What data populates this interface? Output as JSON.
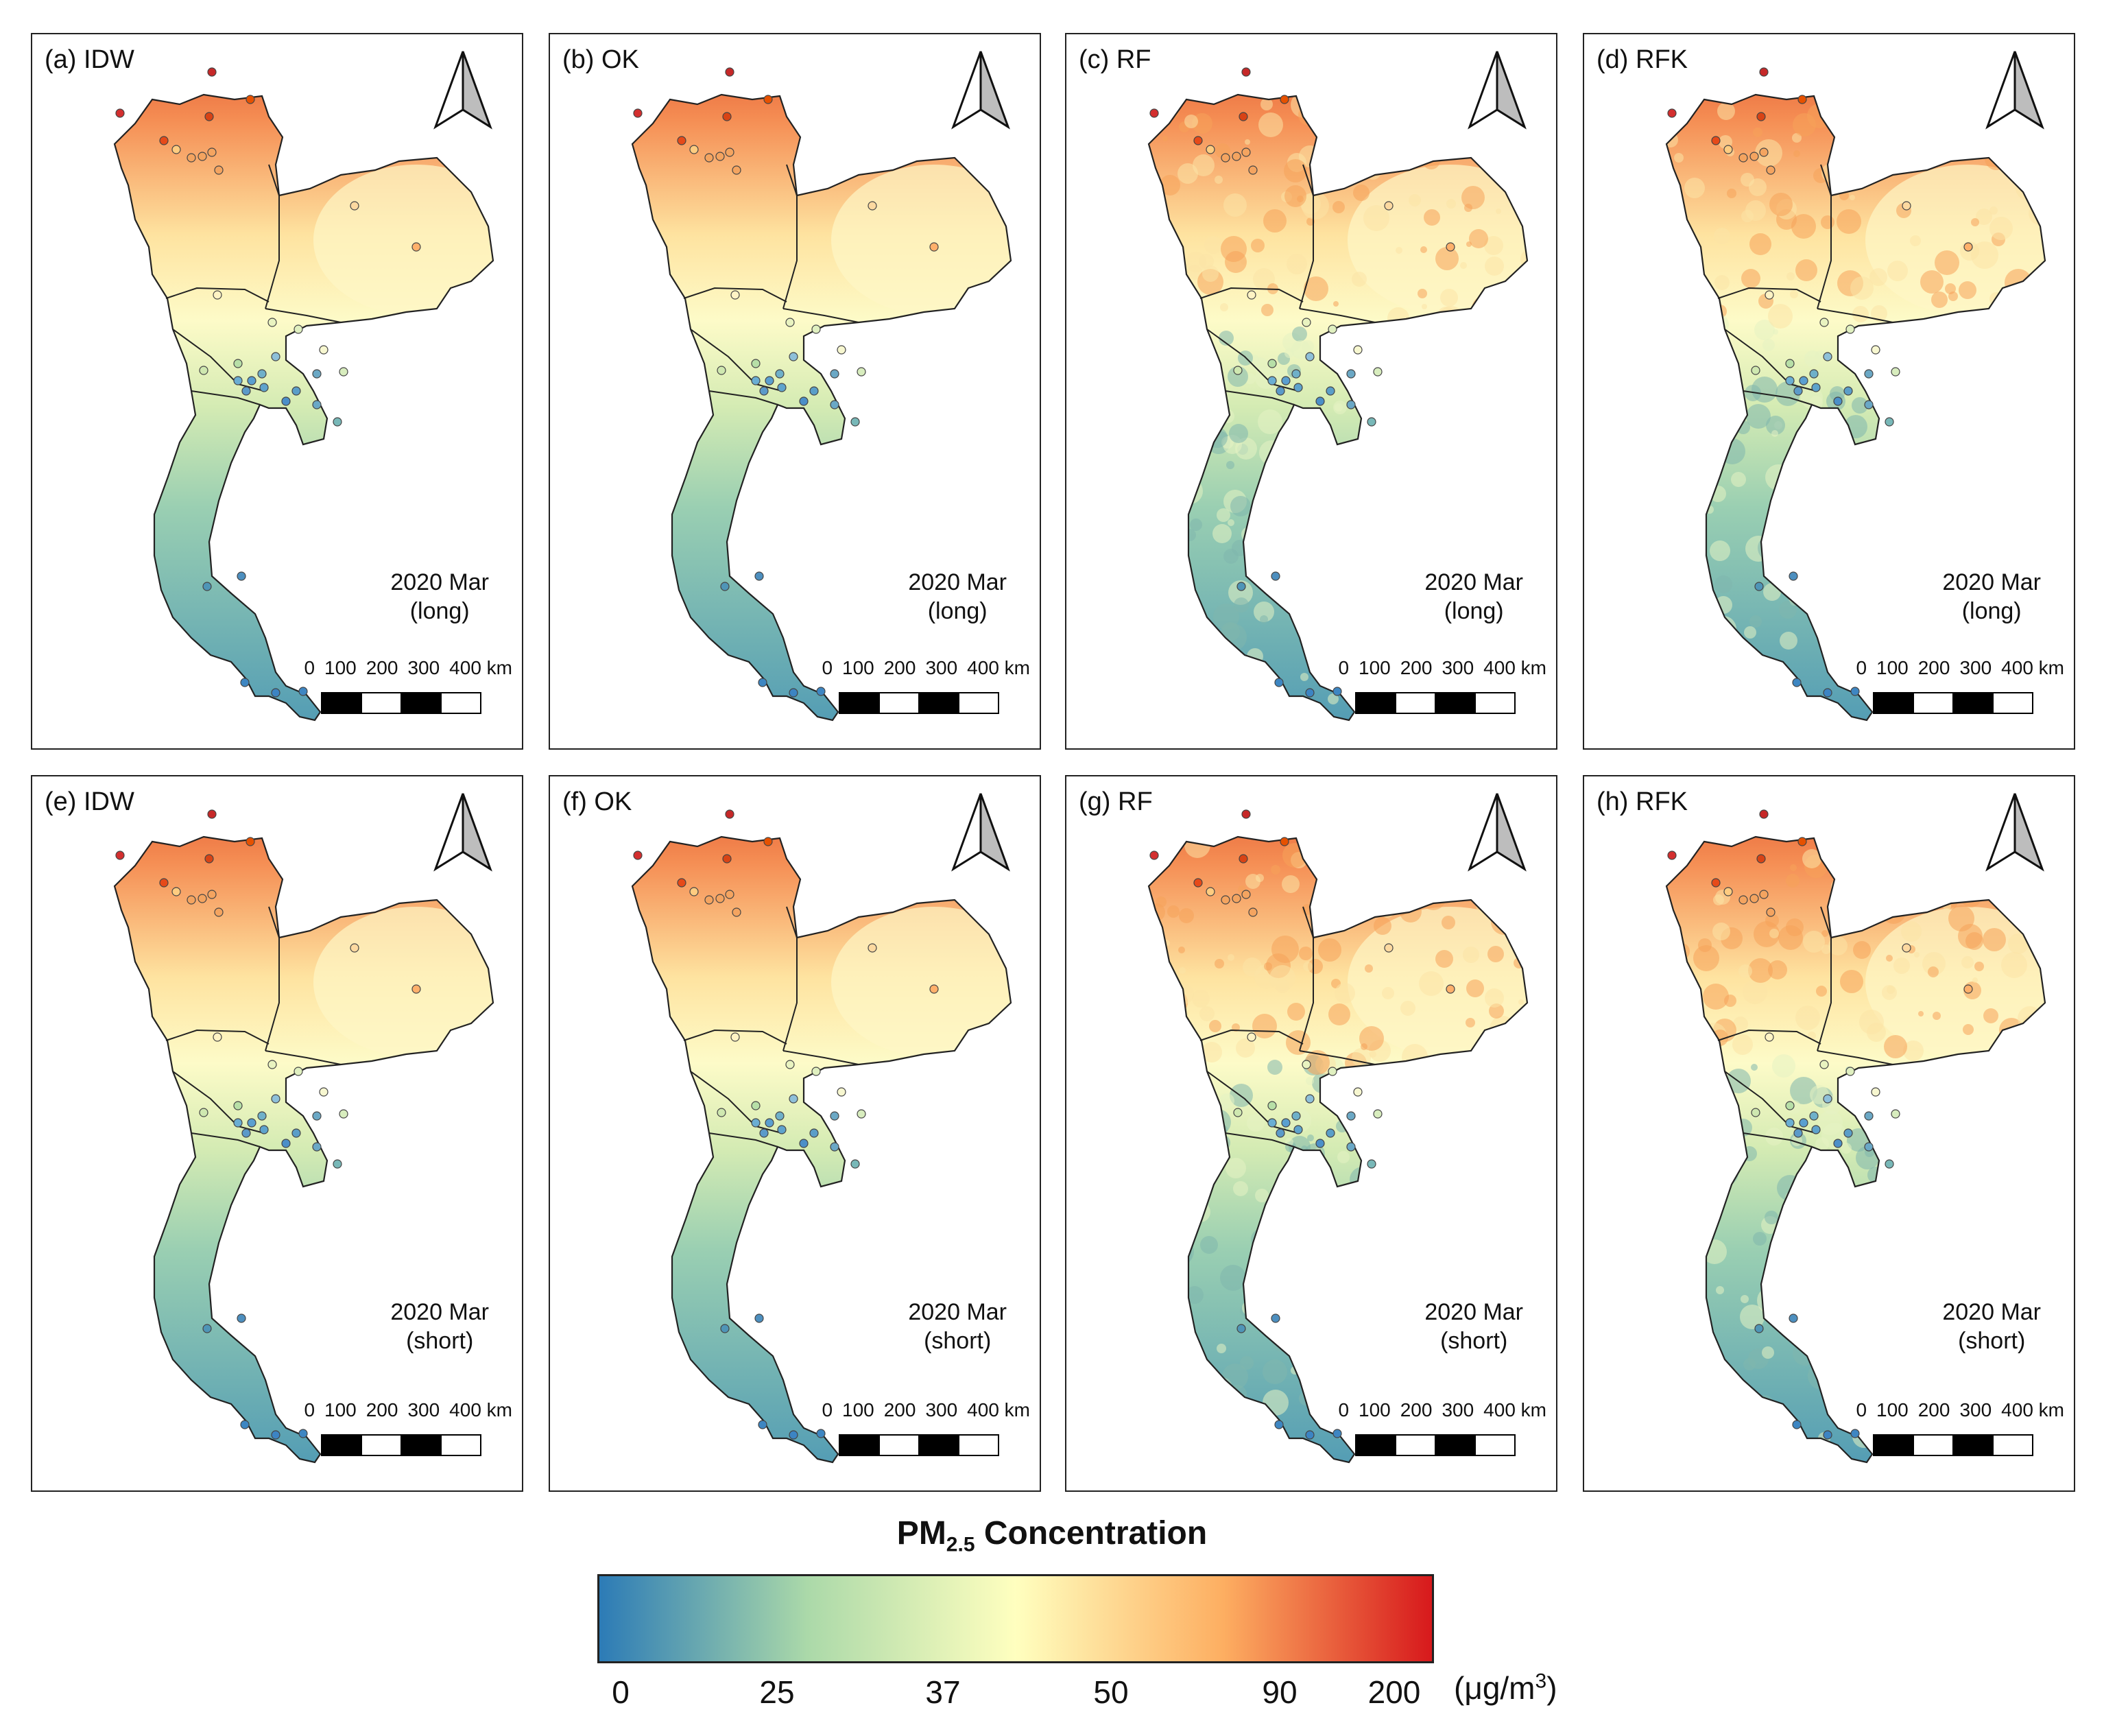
{
  "panels": [
    {
      "label": "(a) IDW",
      "caption_year": "2020 Mar",
      "caption_type": "(long)"
    },
    {
      "label": "(b) OK",
      "caption_year": "2020 Mar",
      "caption_type": "(long)"
    },
    {
      "label": "(c) RF",
      "caption_year": "2020 Mar",
      "caption_type": "(long)"
    },
    {
      "label": "(d) RFK",
      "caption_year": "2020 Mar",
      "caption_type": "(long)"
    },
    {
      "label": "(e) IDW",
      "caption_year": "2020 Mar",
      "caption_type": "(short)"
    },
    {
      "label": "(f) OK",
      "caption_year": "2020 Mar",
      "caption_type": "(short)"
    },
    {
      "label": "(g) RF",
      "caption_year": "2020 Mar",
      "caption_type": "(short)"
    },
    {
      "label": "(h) RFK",
      "caption_year": "2020 Mar",
      "caption_type": "(short)"
    }
  ],
  "scale": {
    "labels": [
      "0",
      "100",
      "200",
      "300",
      "400 km"
    ]
  },
  "legend": {
    "title_main": "PM",
    "title_sub": "2.5",
    "title_rest": " Concentration",
    "ticks": [
      "0",
      "25",
      "37",
      "50",
      "90",
      "200"
    ],
    "unit_prefix": "(μg/m",
    "unit_sup": "3",
    "unit_suffix": ")",
    "colors": [
      "#2c7bb6",
      "#abd9a9",
      "#ffffbf",
      "#fdae61",
      "#d7191c"
    ]
  }
}
